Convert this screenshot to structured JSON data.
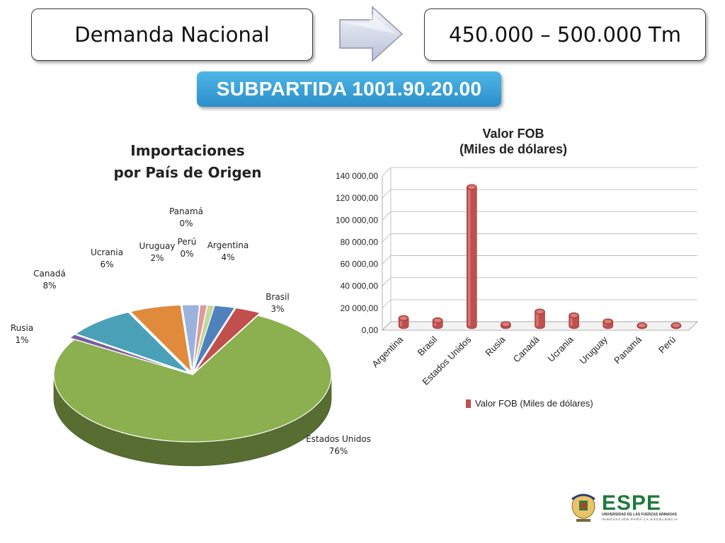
{
  "header": {
    "left_box": "Demanda Nacional",
    "right_box": "450.000 – 500.000 Tm",
    "subpartida": "SUBPARTIDA 1001.90.20.00"
  },
  "pie": {
    "title_line1": "Importaciones",
    "title_line2": "por País de Origen",
    "slices": [
      {
        "name": "Argentina",
        "pct": "4%",
        "value": 4,
        "color": "#4f81bd"
      },
      {
        "name": "Brasil",
        "pct": "3%",
        "value": 3,
        "color": "#c0504d"
      },
      {
        "name": "Estados Unidos",
        "pct": "76%",
        "value": 76,
        "color": "#8caf4f"
      },
      {
        "name": "Rusia",
        "pct": "1%",
        "value": 1,
        "color": "#7a5ea0"
      },
      {
        "name": "Canadá",
        "pct": "8%",
        "value": 8,
        "color": "#4aa1b7"
      },
      {
        "name": "Ucrania",
        "pct": "6%",
        "value": 6,
        "color": "#e08a3c"
      },
      {
        "name": "Uruguay",
        "pct": "2%",
        "value": 2,
        "color": "#9bb3dc"
      },
      {
        "name": "Perú",
        "pct": "0%",
        "value": 0,
        "color": "#dc9a9a"
      },
      {
        "name": "Panamá",
        "pct": "0%",
        "value": 0,
        "color": "#c4d79b"
      }
    ]
  },
  "chart_data": [
    {
      "type": "pie",
      "title": "Importaciones por País de Origen",
      "categories": [
        "Argentina",
        "Brasil",
        "Estados Unidos",
        "Rusia",
        "Canadá",
        "Ucrania",
        "Uruguay",
        "Perú",
        "Panamá"
      ],
      "values": [
        4,
        3,
        76,
        1,
        8,
        6,
        2,
        0,
        0
      ],
      "unit": "%"
    },
    {
      "type": "bar",
      "title": "Valor FOB",
      "subtitle": "(Miles de dólares)",
      "categories": [
        "Argentina",
        "Brasil",
        "Estados Unidos",
        "Rusia",
        "Canadá",
        "Ucrania",
        "Uruguay",
        "Panamá",
        "Perú"
      ],
      "series": [
        {
          "name": "Valor FOB (Miles de dólares)",
          "values": [
            7000,
            5000,
            126000,
            1500,
            13000,
            9500,
            4000,
            500,
            500
          ]
        }
      ],
      "ylim": [
        0,
        140000
      ],
      "yticks": [
        "0,00",
        "20 000,00",
        "40 000,00",
        "60 000,00",
        "80 000,00",
        "100 000,00",
        "120 000,00",
        "140 000,00"
      ],
      "color": "#c0504d",
      "grid": true,
      "legend": "bottom"
    }
  ],
  "bar": {
    "title": "Valor FOB",
    "subtitle": "(Miles de dólares)",
    "legend": "Valor FOB (Miles de dólares)"
  },
  "logo": {
    "name": "ESPE",
    "line1": "UNIVERSIDAD DE LAS FUERZAS ARMADAS",
    "line2": "INNOVACIÓN PARA LA EXCELENCIA"
  }
}
